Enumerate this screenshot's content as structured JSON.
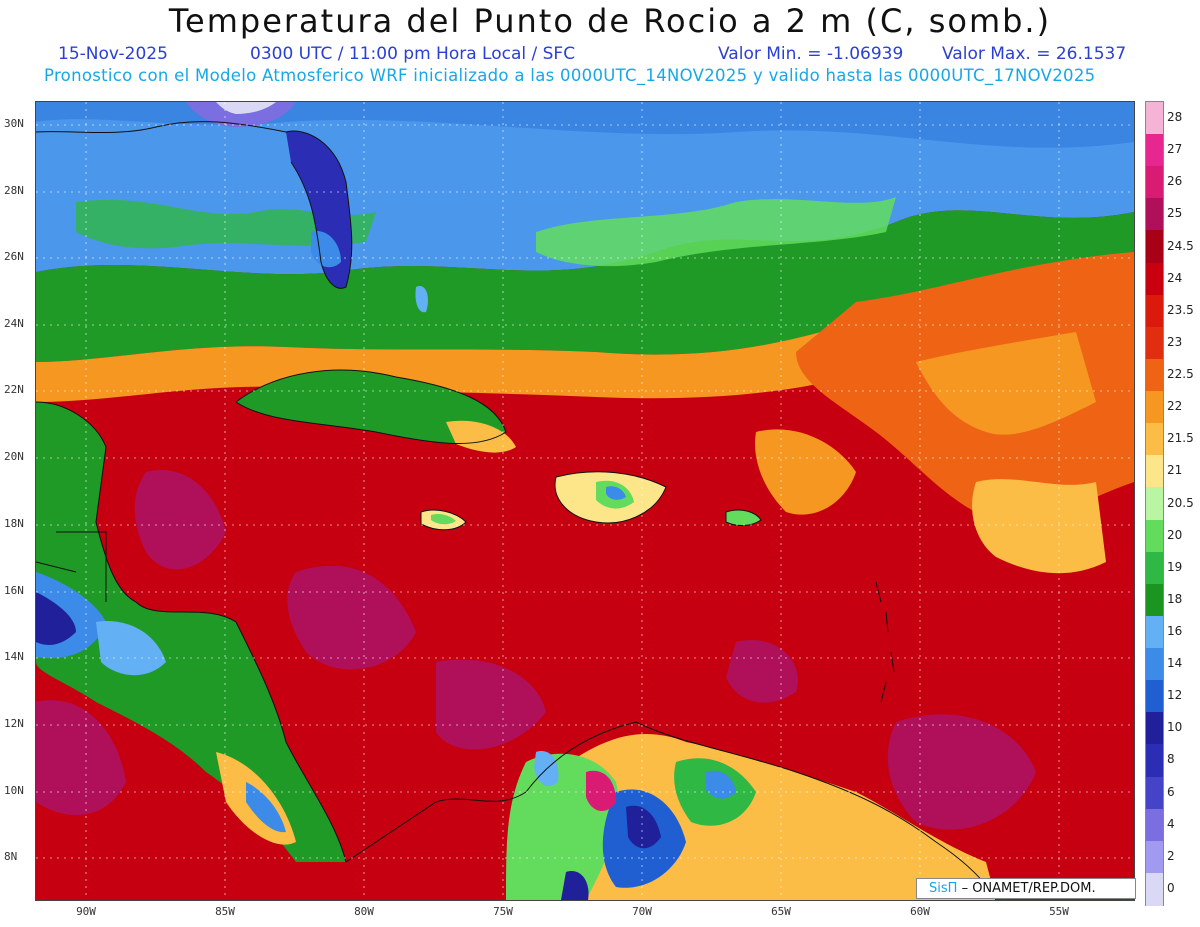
{
  "title": "Temperatura del Punto de Rocio a 2 m (C, somb.)",
  "date": "15-Nov-2025",
  "time": "0300 UTC / 11:00 pm Hora Local / SFC",
  "min_value": "Valor Min. = -1.06939",
  "max_value": "Valor Max. = 26.1537",
  "model_line": "Pronostico con el Modelo Atmosferico WRF inicializado a las 0000UTC_14NOV2025 y valido hasta las  0000UTC_17NOV2025",
  "lat_labels": [
    "30N",
    "28N",
    "26N",
    "24N",
    "22N",
    "20N",
    "18N",
    "16N",
    "14N",
    "12N",
    "10N",
    "8N"
  ],
  "lon_labels": [
    "90W",
    "85W",
    "80W",
    "75W",
    "70W",
    "65W",
    "60W",
    "55W"
  ],
  "legend": {
    "levels": [
      "28",
      "27",
      "26",
      "25",
      "24.5",
      "24",
      "23.5",
      "23",
      "22.5",
      "22",
      "21.5",
      "21",
      "20.5",
      "20",
      "19",
      "18",
      "16",
      "14",
      "12",
      "10",
      "8",
      "6",
      "4",
      "2",
      "0"
    ],
    "colors": [
      "#f5b3d6",
      "#e8268f",
      "#d91b73",
      "#b0105a",
      "#a80016",
      "#c80010",
      "#da1a0c",
      "#e22e10",
      "#ee6414",
      "#f69722",
      "#fbbd45",
      "#fde58a",
      "#b9f5a2",
      "#63dc5e",
      "#2fb844",
      "#1b951f",
      "#63b0f4",
      "#3c8be8",
      "#1f5fd1",
      "#1f209a",
      "#2b2eb4",
      "#4543c8",
      "#7a6ee0",
      "#a29af0",
      "#d9d9f5"
    ]
  },
  "credit": {
    "brand": "SisΠ",
    "org": "– ONAMET/REP.DOM."
  }
}
